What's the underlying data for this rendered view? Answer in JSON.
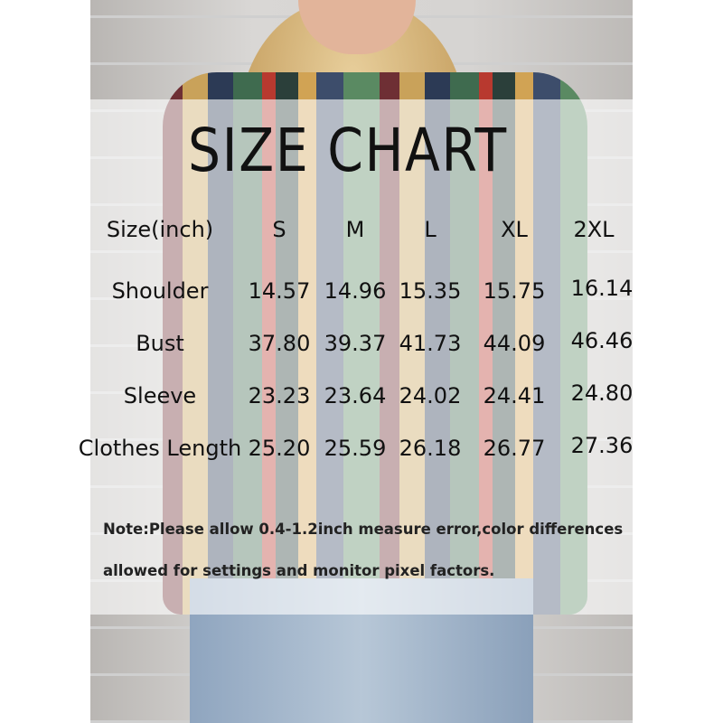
{
  "title": "SIZE CHART",
  "header": [
    "Size(inch)",
    "S",
    "M",
    "L",
    "XL",
    "2XL"
  ],
  "rows": [
    {
      "label": "Shoulder",
      "values": [
        "14.57",
        "14.96",
        "15.35",
        "15.75",
        "16.14"
      ]
    },
    {
      "label": "Bust",
      "values": [
        "37.80",
        "39.37",
        "41.73",
        "44.09",
        "46.46"
      ]
    },
    {
      "label": "Sleeve",
      "values": [
        "23.23",
        "23.64",
        "24.02",
        "24.41",
        "24.80"
      ]
    },
    {
      "label": "Clothes Length",
      "values": [
        "25.20",
        "25.59",
        "26.18",
        "26.77",
        "27.36"
      ]
    }
  ],
  "note_line1": "Note:Please allow 0.4-1.2inch measure error,color differences",
  "note_line2": "allowed for settings and monitor pixel factors."
}
